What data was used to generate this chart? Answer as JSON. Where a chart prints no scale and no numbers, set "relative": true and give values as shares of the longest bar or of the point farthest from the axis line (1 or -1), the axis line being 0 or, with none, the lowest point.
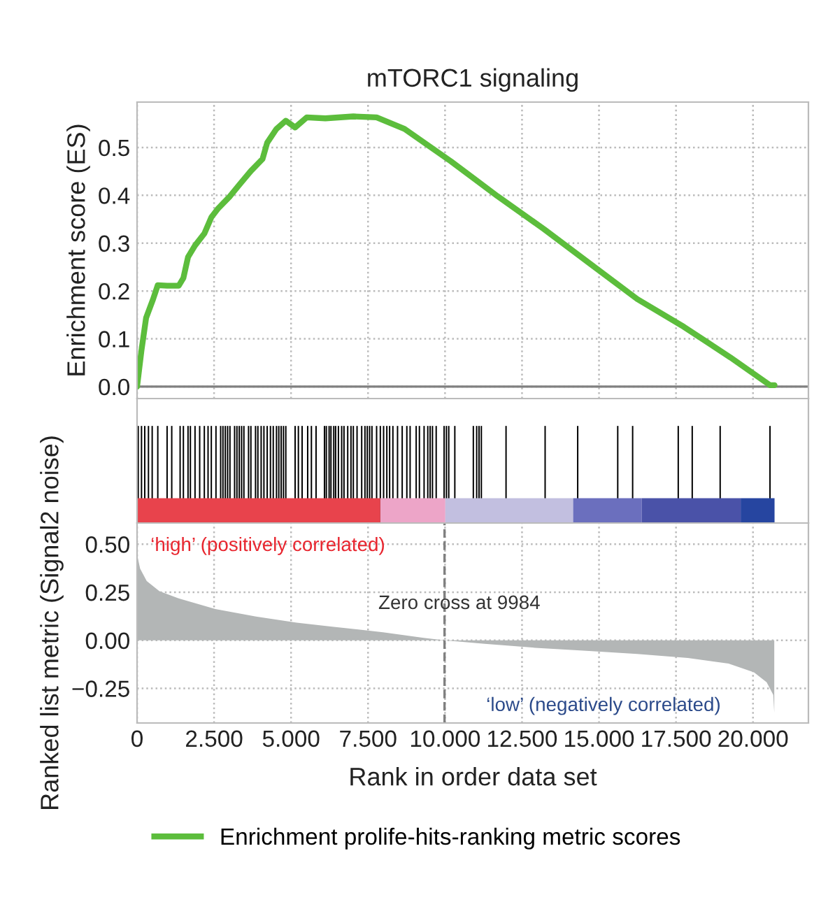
{
  "chart_data": [
    {
      "type": "line",
      "title": "mTORC1 signaling",
      "ylabel": "Enrichment score (ES)",
      "series": [
        {
          "name": "Enrichment prolife-hits-ranking metric scores",
          "color": "#5cbd3c",
          "x": [
            0,
            0.143,
            0.294,
            0.521,
            0.672,
            0.974,
            1.353,
            1.504,
            1.655,
            1.882,
            2.184,
            2.411,
            2.638,
            3.016,
            3.318,
            3.696,
            4.074,
            4.225,
            4.527,
            4.83,
            5.132,
            5.51,
            6.115,
            7.022,
            7.778,
            8.685,
            10.196,
            11.708,
            13.219,
            14.731,
            16.243,
            17.755,
            19.266,
            20.552,
            20.7
          ],
          "values": [
            0,
            0.076,
            0.144,
            0.183,
            0.212,
            0.211,
            0.211,
            0.227,
            0.271,
            0.295,
            0.32,
            0.354,
            0.373,
            0.398,
            0.422,
            0.451,
            0.476,
            0.51,
            0.539,
            0.556,
            0.542,
            0.563,
            0.561,
            0.565,
            0.563,
            0.539,
            0.471,
            0.398,
            0.329,
            0.256,
            0.183,
            0.125,
            0.061,
            0.003,
            0.003
          ]
        }
      ],
      "xlim": [
        0,
        21.8
      ],
      "ylim": [
        -0.025,
        0.595
      ],
      "yticks": [
        {
          "value": 0,
          "label": "0.0"
        },
        0.1,
        0.2,
        0.3,
        0.4,
        0.5
      ],
      "grid": true,
      "tick_labels": "y",
      "legend": "bottom",
      "ref_lines": [
        {
          "axis": "y",
          "value": 0,
          "color": "#808080"
        }
      ]
    },
    {
      "type": "bar",
      "relative": true,
      "color": "#000000",
      "xlim": [
        0,
        21.8
      ],
      "tick_labels": false,
      "bands": [
        {
          "axis": "x",
          "from": 0,
          "to": 7.9,
          "color": "#e8434c"
        },
        {
          "axis": "x",
          "from": 7.9,
          "to": 10.01,
          "color": "#eda5c8"
        },
        {
          "axis": "x",
          "from": 10.01,
          "to": 14.16,
          "color": "#c2bfe0"
        },
        {
          "axis": "x",
          "from": 14.16,
          "to": 16.39,
          "color": "#6b6fbe"
        },
        {
          "axis": "x",
          "from": 16.39,
          "to": 19.6,
          "color": "#4a52a8"
        },
        {
          "axis": "x",
          "from": 19.6,
          "to": 20.7,
          "color": "#2645a0"
        }
      ],
      "x": [
        0.038,
        0.144,
        0.249,
        0.37,
        0.491,
        0.673,
        0.975,
        1.126,
        1.398,
        1.504,
        1.655,
        1.731,
        1.882,
        2.033,
        2.184,
        2.305,
        2.411,
        2.562,
        2.714,
        2.789,
        2.865,
        2.94,
        3.016,
        3.167,
        3.243,
        3.318,
        3.394,
        3.469,
        3.62,
        3.696,
        3.847,
        3.923,
        4.029,
        4.119,
        4.225,
        4.331,
        4.422,
        4.528,
        4.603,
        4.679,
        4.754,
        4.83,
        5.132,
        5.238,
        5.359,
        5.54,
        5.661,
        5.812,
        6.085,
        6.145,
        6.236,
        6.296,
        6.387,
        6.447,
        6.538,
        6.644,
        6.719,
        6.84,
        6.946,
        7.022,
        7.143,
        7.294,
        7.4,
        7.475,
        7.551,
        7.627,
        7.778,
        7.899,
        8.005,
        8.11,
        8.201,
        8.307,
        8.458,
        8.609,
        8.76,
        8.866,
        9.063,
        9.168,
        9.32,
        9.44,
        9.516,
        9.592,
        9.713,
        9.97,
        10.045,
        10.121,
        10.318,
        10.919,
        11.028,
        11.104,
        11.179,
        11.981,
        13.25,
        14.308,
        15.608,
        16.092,
        17.573,
        18.027,
        18.934,
        20.552
      ],
      "values": [
        1,
        1,
        1,
        1,
        1,
        1,
        1,
        1,
        1,
        1,
        1,
        1,
        1,
        1,
        1,
        1,
        1,
        1,
        1,
        1,
        1,
        1,
        1,
        1,
        1,
        1,
        1,
        1,
        1,
        1,
        1,
        1,
        1,
        1,
        1,
        1,
        1,
        1,
        1,
        1,
        1,
        1,
        1,
        1,
        1,
        1,
        1,
        1,
        1,
        1,
        1,
        1,
        1,
        1,
        1,
        1,
        1,
        1,
        1,
        1,
        1,
        1,
        1,
        1,
        1,
        1,
        1,
        1,
        1,
        1,
        1,
        1,
        1,
        1,
        1,
        1,
        1,
        1,
        1,
        1,
        1,
        1,
        1,
        1,
        1,
        1,
        1,
        1,
        1,
        1,
        1,
        1,
        1,
        1,
        1,
        1,
        1,
        1,
        1,
        1
      ]
    },
    {
      "type": "area",
      "xlabel": "Rank in order data set",
      "ylabel": "Ranked list metric (Signal2 noise)",
      "series": [
        {
          "color": "#b3b6b6",
          "x": [
            0,
            0.099,
            0.314,
            0.726,
            1.386,
            2.541,
            3.861,
            5.181,
            6.336,
            7.986,
            9.306,
            9.984,
            11.286,
            12.936,
            14.586,
            16.236,
            17.886,
            19.206,
            20.031,
            20.444,
            20.658,
            20.691
          ],
          "values": [
            0.445,
            0.373,
            0.308,
            0.255,
            0.216,
            0.163,
            0.124,
            0.092,
            0.071,
            0.042,
            0.013,
            0,
            -0.018,
            -0.039,
            -0.055,
            -0.071,
            -0.092,
            -0.121,
            -0.166,
            -0.218,
            -0.284,
            -0.376
          ]
        }
      ],
      "xlim": [
        0,
        21.8
      ],
      "ylim": [
        -0.43,
        0.61
      ],
      "xticks": [
        0,
        {
          "value": 2.5,
          "label": "2.500"
        },
        {
          "value": 5,
          "label": "5.000"
        },
        {
          "value": 7.5,
          "label": "7.500"
        },
        {
          "value": 10,
          "label": "10.000"
        },
        {
          "value": 12.5,
          "label": "12.500"
        },
        {
          "value": 15,
          "label": "15.000"
        },
        {
          "value": 17.5,
          "label": "17.500"
        },
        {
          "value": 20,
          "label": "20.000"
        }
      ],
      "yticks": [
        {
          "value": -0.25,
          "label": "−0.25"
        },
        {
          "value": 0,
          "label": "0.00"
        },
        {
          "value": 0.25,
          "label": "0.25"
        },
        {
          "value": 0.5,
          "label": "0.50"
        }
      ],
      "grid": true,
      "ref_lines": [
        {
          "axis": "x",
          "value": 9.984,
          "color": "#808080",
          "line_style": "dashed"
        }
      ],
      "annotations": [
        "‘high’ (positively correlated)",
        "Zero cross at 9984",
        "‘low’ (negatively correlated)"
      ]
    }
  ]
}
